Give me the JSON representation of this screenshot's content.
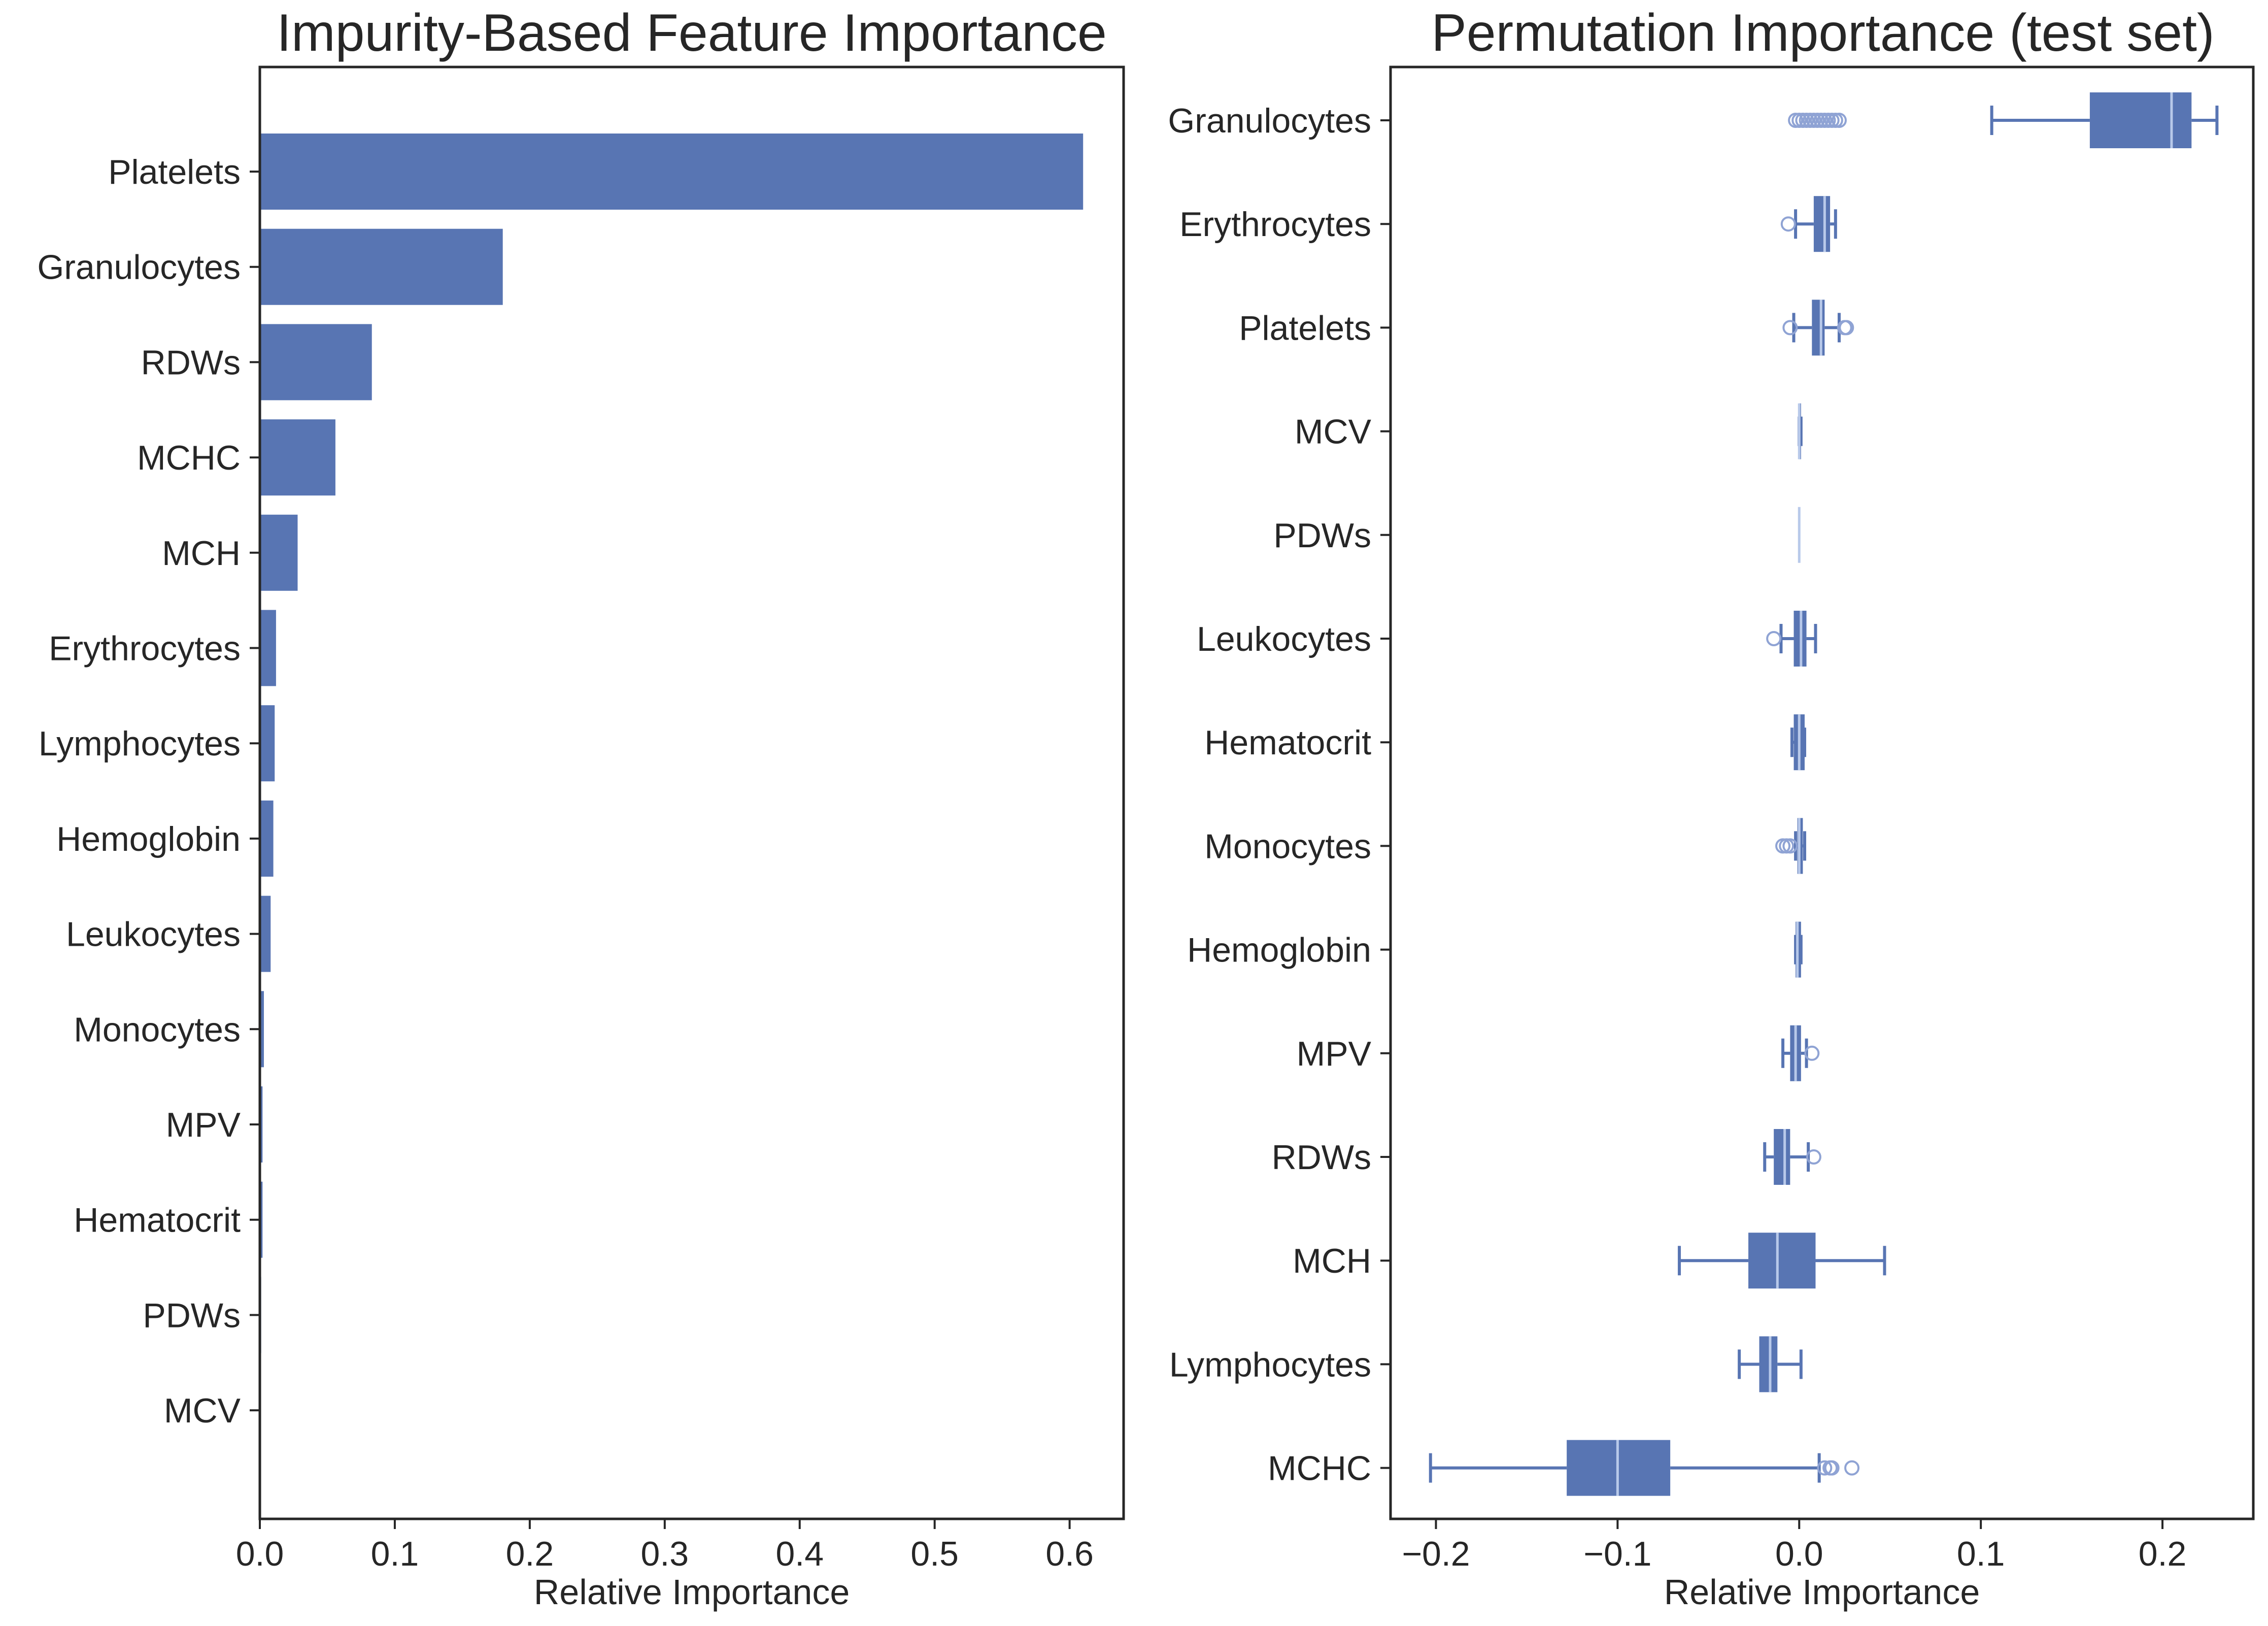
{
  "chart_data": [
    {
      "type": "bar",
      "orientation": "horizontal",
      "title": "Impurity-Based Feature Importance",
      "xlabel": "Relative Importance",
      "ylabel": "",
      "xlim": [
        0,
        0.64
      ],
      "xticks": [
        0.0,
        0.1,
        0.2,
        0.3,
        0.4,
        0.5,
        0.6
      ],
      "xtick_labels": [
        "0.0",
        "0.1",
        "0.2",
        "0.3",
        "0.4",
        "0.5",
        "0.6"
      ],
      "categories": [
        "Platelets",
        "Granulocytes",
        "RDWs",
        "MCHC",
        "MCH",
        "Erythrocytes",
        "Lymphocytes",
        "Hemoglobin",
        "Leukocytes",
        "Monocytes",
        "MPV",
        "Hematocrit",
        "PDWs",
        "MCV"
      ],
      "values": [
        0.61,
        0.18,
        0.083,
        0.056,
        0.028,
        0.012,
        0.011,
        0.01,
        0.008,
        0.003,
        0.002,
        0.002,
        0.001,
        0.0005
      ],
      "bar_color": "#5875b3",
      "grid": false
    },
    {
      "type": "box",
      "orientation": "horizontal",
      "title": "Permutation Importance (test set)",
      "xlabel": "Relative Importance",
      "ylabel": "",
      "xlim": [
        -0.225,
        0.25
      ],
      "xticks": [
        -0.2,
        -0.1,
        0.0,
        0.1,
        0.2
      ],
      "xtick_labels": [
        "−0.2",
        "−0.1",
        "0.0",
        "0.1",
        "0.2"
      ],
      "color": "#5875b3",
      "median_color": "#b8c9ea",
      "grid": false,
      "categories": [
        "Granulocytes",
        "Erythrocytes",
        "Platelets",
        "MCV",
        "PDWs",
        "Leukocytes",
        "Hematocrit",
        "Monocytes",
        "Hemoglobin",
        "MPV",
        "RDWs",
        "MCH",
        "Lymphocytes",
        "MCHC"
      ],
      "boxes": [
        {
          "whislo": 0.106,
          "q1": 0.16,
          "med": 0.205,
          "q3": 0.216,
          "whishi": 0.23,
          "fliers": [
            -0.002,
            0.0,
            0.002,
            0.004,
            0.006,
            0.008,
            0.01,
            0.012,
            0.014,
            0.016,
            0.018,
            0.02,
            0.022
          ]
        },
        {
          "whislo": -0.002,
          "q1": 0.008,
          "med": 0.014,
          "q3": 0.017,
          "whishi": 0.02,
          "fliers": [
            -0.006
          ]
        },
        {
          "whislo": -0.003,
          "q1": 0.007,
          "med": 0.012,
          "q3": 0.014,
          "whishi": 0.022,
          "fliers": [
            -0.005,
            0.025,
            0.026
          ]
        },
        {
          "whislo": 0.0,
          "q1": 0.0,
          "med": 0.0,
          "q3": 0.001,
          "whislo_val": 0.0,
          "whishi": 0.001,
          "fliers": []
        },
        {
          "whislo": 0.0,
          "q1": 0.0,
          "med": 0.0,
          "q3": 0.0,
          "whishi": 0.0,
          "fliers": []
        },
        {
          "whislo": -0.01,
          "q1": -0.003,
          "med": 0.001,
          "q3": 0.004,
          "whishi": 0.009,
          "fliers": [
            -0.014
          ]
        },
        {
          "whislo": -0.004,
          "q1": -0.003,
          "med": 0.0,
          "q3": 0.003,
          "whishi": 0.003,
          "fliers": []
        },
        {
          "whislo": -0.002,
          "q1": -0.001,
          "med": 0.0,
          "q3": 0.002,
          "whishi": 0.003,
          "fliers": [
            -0.009,
            -0.007,
            -0.005
          ]
        },
        {
          "whislo": -0.002,
          "q1": -0.002,
          "med": -0.001,
          "q3": 0.001,
          "whishi": 0.001,
          "fliers": []
        },
        {
          "whislo": -0.009,
          "q1": -0.005,
          "med": -0.002,
          "q3": 0.001,
          "whishi": 0.004,
          "fliers": [
            0.007
          ]
        },
        {
          "whislo": -0.019,
          "q1": -0.014,
          "med": -0.008,
          "q3": -0.005,
          "whishi": 0.005,
          "fliers": [
            0.008
          ]
        },
        {
          "whislo": -0.066,
          "q1": -0.028,
          "med": -0.012,
          "q3": 0.009,
          "whishi": 0.047,
          "fliers": []
        },
        {
          "whislo": -0.033,
          "q1": -0.022,
          "med": -0.016,
          "q3": -0.012,
          "whishi": 0.001,
          "fliers": []
        },
        {
          "whislo": -0.203,
          "q1": -0.128,
          "med": -0.1,
          "q3": -0.071,
          "whishi": 0.011,
          "fliers": [
            0.014,
            0.017,
            0.018,
            0.029
          ]
        }
      ]
    }
  ]
}
